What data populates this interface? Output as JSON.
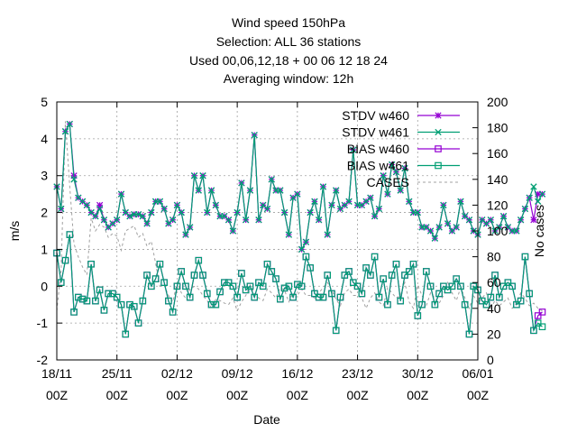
{
  "chart_data": {
    "type": "line",
    "title_lines": [
      "Wind speed 150hPa",
      "Selection: ALL      36 stations",
      "Used  00,06,12,18  + 00 06 12 18 24",
      "Averaging window: 12h"
    ],
    "xlabel": "Date",
    "ylabel": "m/s",
    "y2label": "No cases",
    "xlim_days": [
      0,
      49
    ],
    "ylim": [
      -2,
      5
    ],
    "y2lim": [
      0,
      200
    ],
    "grid": true,
    "legend_position": "top-right",
    "x_ticks": [
      {
        "line1": "18/11",
        "line2": "00Z"
      },
      {
        "line1": "25/11",
        "line2": "00Z"
      },
      {
        "line1": "02/12",
        "line2": "00Z"
      },
      {
        "line1": "09/12",
        "line2": "00Z"
      },
      {
        "line1": "16/12",
        "line2": "00Z"
      },
      {
        "line1": "23/12",
        "line2": "00Z"
      },
      {
        "line1": "30/12",
        "line2": "00Z"
      },
      {
        "line1": "06/01",
        "line2": "00Z"
      }
    ],
    "y_ticks": [
      "-2",
      "-1",
      "0",
      "1",
      "2",
      "3",
      "4",
      "5"
    ],
    "y2_ticks": [
      "0",
      "20",
      "40",
      "60",
      "80",
      "100",
      "120",
      "140",
      "160",
      "180",
      "200"
    ],
    "x_step_days": 0.5,
    "series": [
      {
        "name": "STDV w460",
        "axis": "y",
        "color": "#9400d3",
        "marker": "star",
        "values": [
          2.7,
          2.1,
          4.2,
          4.4,
          3.0,
          2.4,
          2.3,
          2.2,
          2.0,
          1.9,
          2.2,
          1.8,
          1.6,
          1.7,
          1.8,
          2.5,
          2.0,
          1.9,
          1.95,
          1.95,
          1.9,
          1.7,
          2.0,
          2.3,
          2.3,
          2.1,
          1.7,
          1.8,
          2.2,
          2.0,
          1.4,
          1.6,
          3.0,
          2.6,
          3.0,
          2.0,
          2.6,
          2.2,
          1.9,
          1.9,
          1.8,
          1.5,
          2.0,
          2.8,
          1.8,
          2.6,
          4.1,
          1.8,
          2.2,
          2.1,
          2.9,
          2.6,
          2.6,
          2.0,
          1.4,
          2.4,
          2.5,
          1.0,
          1.2,
          2.0,
          2.3,
          1.8,
          2.7,
          1.4,
          2.2,
          2.6,
          2.1,
          2.2,
          2.3,
          3.7,
          2.2,
          2.2,
          2.3,
          2.4,
          1.9,
          2.1,
          3.0,
          2.5,
          3.3,
          3.1,
          2.6,
          3.2,
          2.3,
          2.0,
          2.0,
          1.6,
          1.6,
          1.5,
          1.3,
          1.6,
          2.2,
          1.7,
          1.5,
          1.6,
          2.3,
          1.9,
          1.8,
          1.5,
          1.4,
          1.8,
          1.7,
          1.8,
          1.5,
          1.6,
          1.9,
          1.6,
          1.5,
          1.5,
          1.8,
          2.1,
          2.4,
          1.8,
          2.5,
          2.5
        ]
      },
      {
        "name": "STDV w461",
        "axis": "y",
        "color": "#009e73",
        "marker": "cross",
        "values": [
          2.7,
          2.1,
          4.2,
          4.4,
          2.9,
          2.4,
          2.3,
          2.2,
          2.0,
          1.9,
          2.1,
          1.8,
          1.6,
          1.7,
          1.8,
          2.5,
          2.0,
          1.9,
          1.95,
          1.95,
          1.9,
          1.7,
          2.0,
          2.3,
          2.3,
          2.1,
          1.7,
          1.8,
          2.2,
          2.0,
          1.4,
          1.6,
          3.0,
          2.6,
          3.0,
          2.0,
          2.6,
          2.2,
          1.9,
          1.9,
          1.8,
          1.5,
          2.0,
          2.8,
          1.8,
          2.6,
          4.1,
          1.8,
          2.2,
          2.1,
          2.9,
          2.6,
          2.6,
          2.0,
          1.4,
          2.4,
          2.5,
          1.0,
          1.2,
          2.0,
          2.3,
          1.8,
          2.7,
          1.4,
          2.2,
          2.6,
          2.1,
          2.2,
          2.3,
          3.7,
          2.2,
          2.2,
          2.3,
          2.4,
          1.9,
          2.1,
          3.0,
          2.5,
          3.3,
          3.1,
          2.6,
          3.2,
          2.3,
          2.0,
          2.0,
          1.6,
          1.6,
          1.5,
          1.3,
          1.6,
          2.2,
          1.7,
          1.5,
          1.6,
          2.3,
          1.9,
          1.8,
          1.5,
          1.4,
          1.8,
          1.7,
          1.8,
          1.5,
          1.6,
          1.9,
          1.6,
          1.5,
          1.5,
          1.8,
          2.1,
          2.4,
          2.7,
          2.3,
          2.5
        ]
      },
      {
        "name": "BIAS w460",
        "axis": "y",
        "color": "#9400d3",
        "marker": "square",
        "values": [
          0.9,
          0.1,
          0.7,
          1.4,
          -0.7,
          -0.3,
          -0.35,
          -0.4,
          0.6,
          -0.4,
          -0.1,
          -0.65,
          -0.2,
          -0.2,
          -0.3,
          -0.5,
          -1.3,
          -0.5,
          -0.55,
          -1.0,
          -0.4,
          0.3,
          0.0,
          0.2,
          0.6,
          0.1,
          -0.4,
          -0.7,
          0.0,
          0.4,
          0.0,
          -0.3,
          0.3,
          0.7,
          0.3,
          -0.2,
          -0.5,
          -0.5,
          -0.15,
          0.1,
          0.1,
          0.0,
          -0.3,
          0.35,
          -0.1,
          0.0,
          -0.3,
          0.1,
          0.0,
          0.6,
          0.4,
          0.2,
          -0.35,
          -0.05,
          0.0,
          -0.3,
          0.05,
          0.0,
          0.8,
          0.5,
          -0.2,
          -0.3,
          -0.3,
          0.3,
          -0.2,
          -1.2,
          -0.3,
          0.3,
          0.4,
          0.1,
          0.0,
          -0.2,
          0.5,
          0.3,
          0.8,
          -0.3,
          0.2,
          -0.5,
          0.3,
          0.6,
          -0.4,
          0.3,
          0.4,
          0.6,
          -0.8,
          -0.5,
          0.4,
          0.0,
          -0.5,
          -0.2,
          0.0,
          -0.1,
          0.0,
          0.2,
          0.0,
          -0.5,
          -1.3,
          0.0,
          -0.1,
          -0.4,
          -0.5,
          -0.3,
          0.3,
          -0.3,
          0.0,
          0.1,
          0.0,
          -0.5,
          -0.4,
          0.8,
          -0.2,
          -1.2,
          -0.8,
          -0.7
        ]
      },
      {
        "name": "BIAS w461",
        "axis": "y",
        "color": "#009e73",
        "marker": "square",
        "values": [
          0.9,
          0.1,
          0.7,
          1.4,
          -0.7,
          -0.3,
          -0.35,
          -0.4,
          0.6,
          -0.4,
          -0.1,
          -0.65,
          -0.2,
          -0.2,
          -0.3,
          -0.5,
          -1.3,
          -0.5,
          -0.55,
          -1.0,
          -0.4,
          0.3,
          0.0,
          0.2,
          0.6,
          0.1,
          -0.4,
          -0.7,
          0.0,
          0.4,
          0.0,
          -0.3,
          0.3,
          0.7,
          0.3,
          -0.2,
          -0.5,
          -0.5,
          -0.15,
          0.1,
          0.1,
          0.0,
          -0.3,
          0.35,
          -0.1,
          0.0,
          -0.3,
          0.1,
          0.0,
          0.6,
          0.4,
          0.2,
          -0.35,
          -0.05,
          0.0,
          -0.3,
          0.05,
          0.0,
          0.8,
          0.5,
          -0.2,
          -0.3,
          -0.3,
          0.3,
          -0.2,
          -1.2,
          -0.3,
          0.3,
          0.4,
          0.1,
          0.0,
          -0.2,
          0.5,
          0.3,
          0.8,
          -0.3,
          0.2,
          -0.5,
          0.3,
          0.6,
          -0.4,
          0.3,
          0.4,
          0.6,
          -0.8,
          -0.5,
          0.4,
          0.0,
          -0.5,
          -0.2,
          0.0,
          -0.1,
          0.0,
          0.2,
          0.0,
          -0.5,
          -1.3,
          0.0,
          -0.1,
          -0.4,
          -0.5,
          -0.3,
          0.3,
          -0.3,
          0.0,
          0.1,
          0.0,
          -0.5,
          -0.4,
          0.8,
          -0.2,
          -1.2,
          -1.0,
          -1.1
        ]
      },
      {
        "name": "CASES",
        "axis": "y2",
        "color": "#a0a0a0",
        "marker": "none",
        "dashed": true,
        "values": [
          38,
          70,
          185,
          135,
          90,
          80,
          72,
          66,
          110,
          100,
          105,
          103,
          95,
          98,
          96,
          85,
          100,
          102,
          104,
          95,
          98,
          88,
          92,
          75,
          57,
          58,
          50,
          45,
          60,
          52,
          48,
          55,
          57,
          55,
          50,
          46,
          40,
          47,
          46,
          44,
          43,
          48,
          38,
          45,
          50,
          58,
          52,
          48,
          46,
          55,
          52,
          48,
          56,
          54,
          45,
          52,
          50,
          55,
          50,
          50,
          48,
          52,
          56,
          60,
          54,
          47,
          42,
          52,
          55,
          50,
          50,
          48,
          40,
          48,
          52,
          45,
          42,
          56,
          52,
          48,
          50,
          60,
          45,
          40,
          58,
          50,
          42,
          52,
          48,
          44,
          50,
          60,
          52,
          46,
          56,
          48,
          40,
          50,
          44,
          48,
          52,
          40,
          46,
          42,
          45,
          48,
          40,
          44,
          52,
          48,
          42,
          44,
          40,
          38
        ]
      }
    ]
  }
}
